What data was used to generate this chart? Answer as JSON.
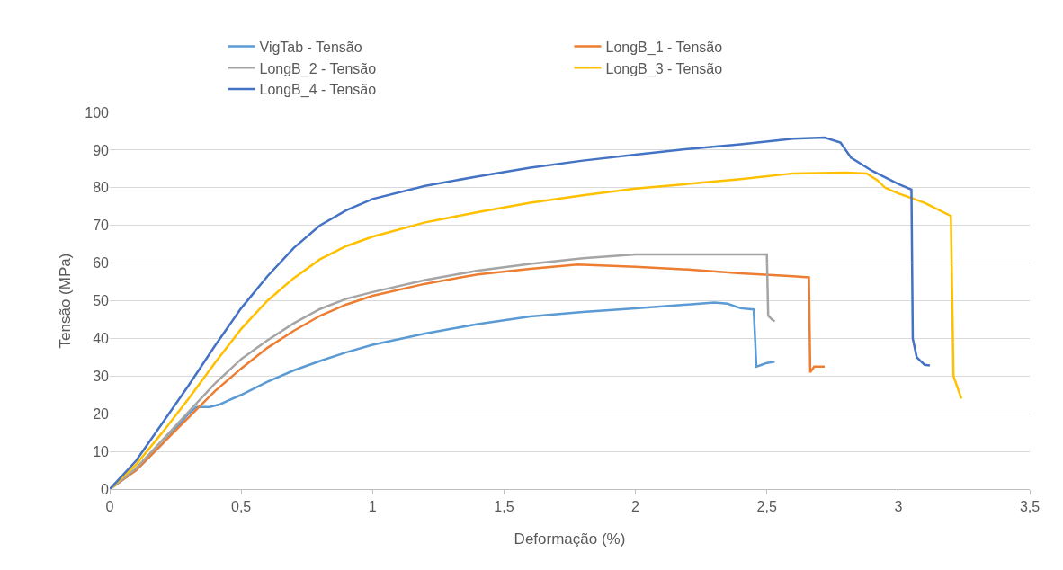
{
  "chart_data": {
    "type": "line",
    "xlabel": "Deformação (%)",
    "ylabel": "Tensão (MPa)",
    "xlim": [
      0,
      3.5
    ],
    "xticks": [
      {
        "value": 0,
        "label": "0"
      },
      {
        "value": 0.5,
        "label": "0,5"
      },
      {
        "value": 1,
        "label": "1"
      },
      {
        "value": 1.5,
        "label": "1,5"
      },
      {
        "value": 2,
        "label": "2"
      },
      {
        "value": 2.5,
        "label": "2,5"
      },
      {
        "value": 3,
        "label": "3"
      },
      {
        "value": 3.5,
        "label": "3,5"
      }
    ],
    "ylim": [
      0,
      100
    ],
    "yticks": [
      0,
      10,
      20,
      30,
      40,
      50,
      60,
      70,
      80,
      90,
      100
    ],
    "grid": "y",
    "legend": "top",
    "marker": "none",
    "line_style": "solid",
    "series": [
      {
        "name": "VigTab - Tensão",
        "color": "#5b9bd5",
        "x": [
          0,
          0.1,
          0.2,
          0.3,
          0.33,
          0.38,
          0.42,
          0.45,
          0.5,
          0.6,
          0.7,
          0.8,
          0.9,
          1,
          1.2,
          1.4,
          1.6,
          1.8,
          2,
          2.2,
          2.3,
          2.35,
          2.4,
          2.45,
          2.46,
          2.48,
          2.5,
          2.53
        ],
        "values": [
          0,
          5,
          12,
          20,
          21.8,
          21.8,
          22.5,
          23.5,
          25,
          28.5,
          31.5,
          34,
          36.3,
          38.3,
          41.3,
          43.8,
          45.8,
          47,
          48,
          49,
          49.5,
          49.2,
          48,
          47.7,
          32.5,
          33,
          33.5,
          33.8
        ]
      },
      {
        "name": "LongB_1 - Tensão",
        "color": "#ed7d31",
        "x": [
          0,
          0.1,
          0.2,
          0.3,
          0.4,
          0.5,
          0.6,
          0.7,
          0.8,
          0.9,
          1,
          1.2,
          1.4,
          1.6,
          1.78,
          2,
          2.2,
          2.4,
          2.6,
          2.66,
          2.665,
          2.68,
          2.72
        ],
        "values": [
          0,
          5,
          12,
          19,
          26,
          32,
          37.5,
          42,
          46,
          49,
          51.3,
          54.5,
          57,
          58.5,
          59.6,
          59,
          58.3,
          57.3,
          56.5,
          56.2,
          31,
          32.5,
          32.5
        ]
      },
      {
        "name": "LongB_2 - Tensão",
        "color": "#a5a5a5",
        "x": [
          0,
          0.1,
          0.2,
          0.3,
          0.4,
          0.5,
          0.6,
          0.7,
          0.8,
          0.9,
          1,
          1.2,
          1.4,
          1.6,
          1.8,
          2,
          2.2,
          2.4,
          2.5,
          2.505,
          2.52,
          2.53
        ],
        "values": [
          0,
          5.5,
          13,
          20.5,
          28,
          34.5,
          39.5,
          44,
          47.8,
          50.5,
          52.3,
          55.5,
          58,
          59.8,
          61.3,
          62.3,
          62.3,
          62.3,
          62.3,
          46,
          45,
          44.5
        ]
      },
      {
        "name": "LongB_3 - Tensão",
        "color": "#ffc000",
        "x": [
          0,
          0.1,
          0.2,
          0.3,
          0.4,
          0.5,
          0.6,
          0.7,
          0.8,
          0.9,
          1,
          1.2,
          1.4,
          1.6,
          1.8,
          2,
          2.2,
          2.4,
          2.6,
          2.8,
          2.88,
          2.92,
          2.95,
          3,
          3.1,
          3.2,
          3.21,
          3.24
        ],
        "values": [
          0,
          6.5,
          15,
          24,
          33.5,
          42.5,
          50,
          56,
          61,
          64.5,
          67,
          70.8,
          73.5,
          76,
          78,
          79.8,
          81,
          82.3,
          83.8,
          84,
          83.8,
          82,
          80,
          78.5,
          76,
          72.5,
          30,
          24
        ]
      },
      {
        "name": "LongB_4 - Tensão",
        "color": "#4472c4",
        "x": [
          0,
          0.1,
          0.2,
          0.3,
          0.4,
          0.5,
          0.6,
          0.7,
          0.8,
          0.9,
          1,
          1.2,
          1.4,
          1.6,
          1.8,
          2,
          2.2,
          2.4,
          2.6,
          2.72,
          2.78,
          2.82,
          2.9,
          3,
          3.05,
          3.055,
          3.07,
          3.1,
          3.12
        ],
        "values": [
          0,
          7.5,
          17.5,
          27.5,
          38,
          48,
          56.5,
          64,
          70,
          74,
          77,
          80.5,
          83,
          85.3,
          87.2,
          88.8,
          90.3,
          91.5,
          93,
          93.3,
          92,
          88,
          84.5,
          81,
          79.5,
          40,
          35,
          33,
          32.8
        ]
      }
    ]
  }
}
